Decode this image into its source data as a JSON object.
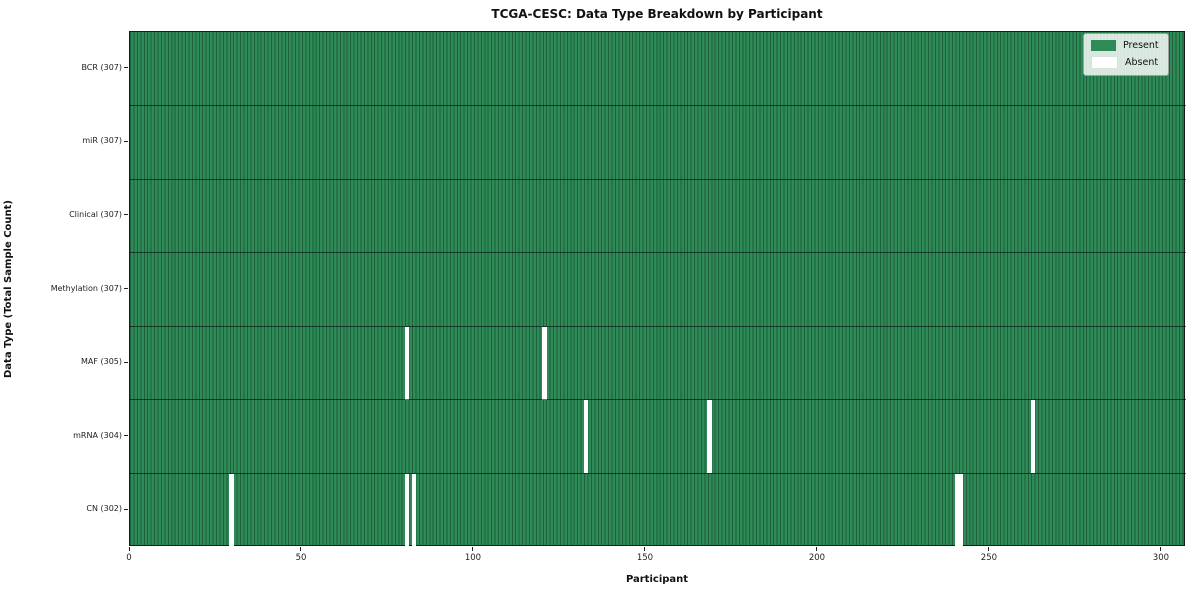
{
  "title": "TCGA-CESC: Data Type Breakdown by Participant",
  "xlabel": "Participant",
  "ylabel": "Data Type (Total Sample Count)",
  "legend": [
    {
      "label": "Present",
      "color": "#2e8b57"
    },
    {
      "label": "Absent",
      "color": "#ffffff"
    }
  ],
  "x_ticks": [
    0,
    50,
    100,
    150,
    200,
    250,
    300
  ],
  "chart_data": {
    "type": "heatmap",
    "title": "TCGA-CESC: Data Type Breakdown by Participant",
    "xlabel": "Participant",
    "ylabel": "Data Type (Total Sample Count)",
    "n_participants": 307,
    "x_range": [
      0,
      307
    ],
    "legend_position": "upper right",
    "colors": {
      "present": "#2e8b57",
      "absent": "#ffffff",
      "cell_edge": "rgba(8,34,22,0.42)"
    },
    "rows": [
      {
        "label": "BCR (307)",
        "data_type": "BCR",
        "total": 307,
        "absent_participants": []
      },
      {
        "label": "miR (307)",
        "data_type": "miR",
        "total": 307,
        "absent_participants": []
      },
      {
        "label": "Clinical (307)",
        "data_type": "Clinical",
        "total": 307,
        "absent_participants": []
      },
      {
        "label": "Methylation (307)",
        "data_type": "Methylation",
        "total": 307,
        "absent_participants": []
      },
      {
        "label": "MAF (305)",
        "data_type": "MAF",
        "total": 305,
        "absent_participants": [
          80,
          120
        ]
      },
      {
        "label": "mRNA (304)",
        "data_type": "mRNA",
        "total": 304,
        "absent_participants": [
          132,
          168,
          262
        ]
      },
      {
        "label": "CN (302)",
        "data_type": "CN",
        "total": 302,
        "absent_participants": [
          29,
          80,
          82,
          240,
          241
        ]
      }
    ]
  }
}
